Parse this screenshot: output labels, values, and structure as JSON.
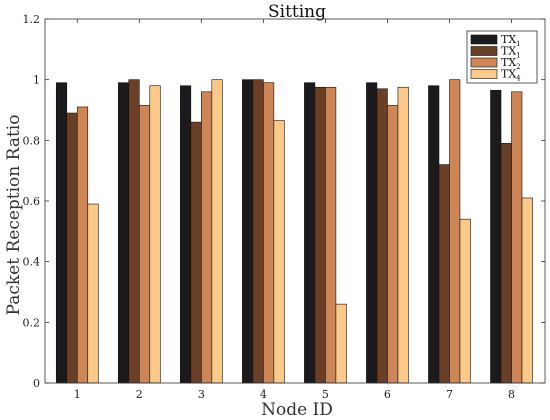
{
  "chart_data": {
    "type": "bar",
    "title": "Sitting",
    "xlabel": "Node ID",
    "ylabel": "Packet Reception Ratio",
    "categories": [
      "1",
      "2",
      "3",
      "4",
      "5",
      "6",
      "7",
      "8"
    ],
    "ylim": [
      0,
      1.2
    ],
    "yticks": [
      "0",
      "0.2",
      "0.4",
      "0.6",
      "0.8",
      "1",
      "1.2"
    ],
    "grid": false,
    "legend_position": "top-right",
    "series": [
      {
        "name": "TX",
        "subscript": "1",
        "color": "#1c1a1c",
        "values": [
          0.99,
          0.99,
          0.98,
          1.0,
          0.99,
          0.99,
          0.98,
          0.965
        ]
      },
      {
        "name": "TX",
        "subscript": "1",
        "color": "#6b3e26",
        "values": [
          0.89,
          1.0,
          0.86,
          1.0,
          0.975,
          0.97,
          0.72,
          0.79
        ]
      },
      {
        "name": "TX",
        "subscript": "2",
        "color": "#cf8656",
        "values": [
          0.91,
          0.915,
          0.96,
          0.99,
          0.975,
          0.915,
          1.0,
          0.96
        ]
      },
      {
        "name": "TX",
        "subscript": "4",
        "color": "#fbc98a",
        "values": [
          0.59,
          0.98,
          1.0,
          0.865,
          0.26,
          0.975,
          0.54,
          0.61
        ]
      }
    ]
  }
}
